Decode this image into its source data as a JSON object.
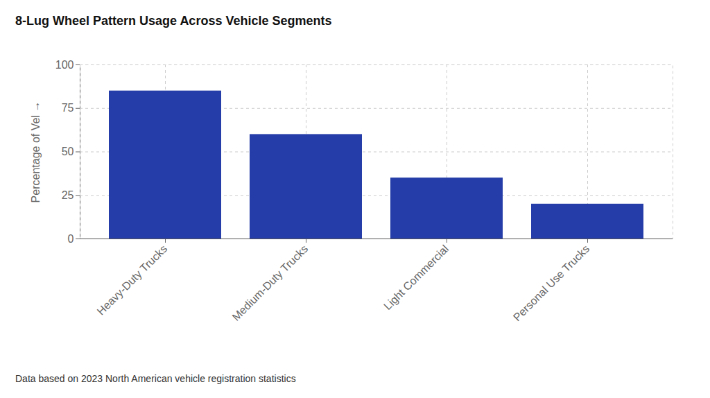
{
  "chart_data": {
    "type": "bar",
    "title": "8-Lug Wheel Pattern Usage Across Vehicle Segments",
    "y_label": "Percentage of Vel",
    "caption": "Data based on 2023 North American vehicle registration statistics",
    "categories": [
      "Heavy-Duty Trucks",
      "Medium-Duty Trucks",
      "Light Commercial",
      "Personal Use Trucks"
    ],
    "values": [
      85,
      60,
      35,
      20
    ],
    "color": "#253da8",
    "ylim": [
      0,
      100
    ],
    "yticks": [
      0,
      25,
      50,
      75,
      100
    ],
    "grid": true
  }
}
